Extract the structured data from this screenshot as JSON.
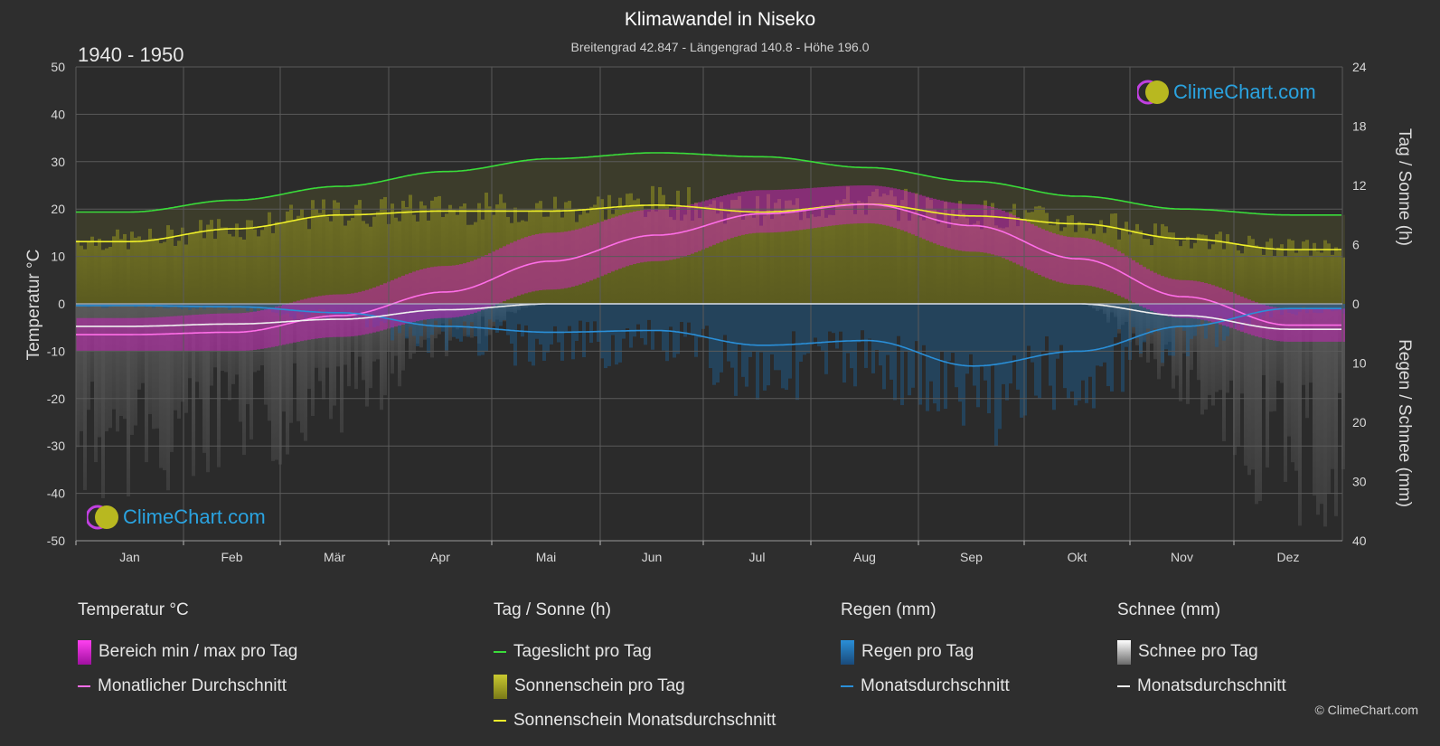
{
  "header": {
    "title": "Klimawandel in Niseko",
    "subtitle": "Breitengrad 42.847 - Längengrad 140.8 - Höhe 196.0",
    "period": "1940 - 1950"
  },
  "brand": {
    "logo_text": "ClimeChart.com",
    "copyright": "© ClimeChart.com"
  },
  "colors": {
    "background": "#2e2e2e",
    "daylight": "#3adc3a",
    "sunshine": "#f0f02a",
    "temp_mean": "#ff6ee8",
    "temp_range": "#e020d0",
    "rain": "#2a8fd8",
    "snow": "#f0f0f0",
    "grid": "#5a5a5a"
  },
  "chart_data": {
    "type": "line",
    "categories": [
      "Jan",
      "Feb",
      "Mär",
      "Apr",
      "Mai",
      "Jun",
      "Jul",
      "Aug",
      "Sep",
      "Okt",
      "Nov",
      "Dez"
    ],
    "left_axis": {
      "label": "Temperatur °C",
      "ylim": [
        -50,
        50
      ],
      "ticks": [
        "50",
        "40",
        "30",
        "20",
        "10",
        "0",
        "-10",
        "-20",
        "-30",
        "-40",
        "-50"
      ]
    },
    "right_axis_top": {
      "label": "Tag / Sonne (h)",
      "ylim": [
        0,
        24
      ],
      "ticks": [
        "24",
        "18",
        "12",
        "6",
        "0"
      ]
    },
    "right_axis_bottom": {
      "label": "Regen / Schnee (mm)",
      "ylim": [
        0,
        40
      ],
      "ticks": [
        "0",
        "10",
        "20",
        "30",
        "40"
      ]
    },
    "grid": true,
    "series": [
      {
        "name": "Tageslicht pro Tag",
        "axis": "sun_h",
        "values": [
          9.3,
          10.5,
          11.9,
          13.4,
          14.7,
          15.3,
          14.9,
          13.8,
          12.4,
          10.9,
          9.6,
          9.0
        ]
      },
      {
        "name": "Sonnenschein Monatsdurchschnitt",
        "axis": "sun_h",
        "values": [
          6.3,
          7.6,
          9.0,
          9.4,
          9.4,
          10.0,
          9.3,
          10.1,
          8.9,
          8.1,
          6.6,
          5.5
        ]
      },
      {
        "name": "Monatlicher Durchschnitt",
        "axis": "temp_c",
        "values": [
          -6.5,
          -6.0,
          -2.5,
          2.5,
          9.0,
          14.5,
          19.0,
          21.0,
          16.5,
          9.5,
          1.5,
          -4.5
        ]
      },
      {
        "name": "Regen Monatsdurchschnitt",
        "axis": "precip_mm",
        "values": [
          0.3,
          0.5,
          1.5,
          3.8,
          4.8,
          4.5,
          7.0,
          6.2,
          10.5,
          8.0,
          3.8,
          0.8
        ]
      },
      {
        "name": "Schnee Monatsdurchschnitt",
        "axis": "precip_mm",
        "values": [
          3.8,
          3.4,
          2.6,
          1.0,
          0.0,
          0.0,
          0.0,
          0.0,
          0.0,
          0.0,
          2.0,
          4.3
        ]
      }
    ],
    "temp_range_daily": {
      "min": [
        -10,
        -10,
        -7,
        -3,
        3,
        9,
        15,
        17,
        11,
        4,
        -3,
        -8
      ],
      "max": [
        -3,
        -2,
        2,
        8,
        15,
        20,
        24,
        25,
        21,
        14,
        5,
        -1
      ]
    }
  },
  "legend": {
    "temperature": {
      "heading": "Temperatur °C",
      "items": [
        "Bereich min / max pro Tag",
        "Monatlicher Durchschnitt"
      ]
    },
    "sun": {
      "heading": "Tag / Sonne (h)",
      "items": [
        "Tageslicht pro Tag",
        "Sonnenschein pro Tag",
        "Sonnenschein Monatsdurchschnitt"
      ]
    },
    "rain": {
      "heading": "Regen (mm)",
      "items": [
        "Regen pro Tag",
        "Monatsdurchschnitt"
      ]
    },
    "snow": {
      "heading": "Schnee (mm)",
      "items": [
        "Schnee pro Tag",
        "Monatsdurchschnitt"
      ]
    }
  }
}
